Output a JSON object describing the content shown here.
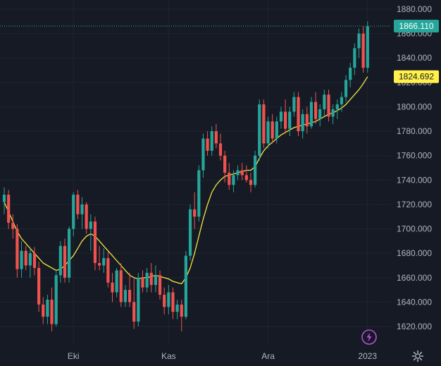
{
  "colors": {
    "background": "#161a25",
    "grid": "#1f2430",
    "up": "#26a69a",
    "down": "#ef5350",
    "ma": "#f4e542",
    "text": "#b2b5be",
    "last_price_bg": "#26a69a",
    "ma_tag_bg": "#fff04a",
    "badge": "#b84fd6"
  },
  "chart_data": {
    "type": "candlestick",
    "y_axis": {
      "min": 1608,
      "max": 1886,
      "ticks": [
        "1880.000",
        "1860.000",
        "1840.000",
        "1820.000",
        "1800.000",
        "1780.000",
        "1760.000",
        "1740.000",
        "1720.000",
        "1700.000",
        "1680.000",
        "1660.000",
        "1640.000",
        "1620.000"
      ],
      "tick_values": [
        1880,
        1860,
        1840,
        1820,
        1800,
        1780,
        1760,
        1740,
        1720,
        1700,
        1680,
        1660,
        1640,
        1620
      ]
    },
    "x_axis": {
      "labels": [
        {
          "text": "Eki",
          "index": 16
        },
        {
          "text": "Kas",
          "index": 38
        },
        {
          "text": "Ara",
          "index": 61
        },
        {
          "text": "2023",
          "index": 84
        }
      ]
    },
    "last_price": {
      "text": "1866.110",
      "value": 1866.11
    },
    "ma_last": {
      "text": "1824.692",
      "value": 1824.692
    },
    "series": [
      {
        "name": "price",
        "ohlc": [
          [
            1722,
            1734,
            1712,
            1728
          ],
          [
            1728,
            1732,
            1700,
            1705
          ],
          [
            1705,
            1712,
            1692,
            1700
          ],
          [
            1700,
            1704,
            1660,
            1667
          ],
          [
            1667,
            1690,
            1660,
            1682
          ],
          [
            1682,
            1686,
            1666,
            1670
          ],
          [
            1670,
            1684,
            1660,
            1680
          ],
          [
            1680,
            1685,
            1662,
            1668
          ],
          [
            1668,
            1673,
            1632,
            1638
          ],
          [
            1638,
            1644,
            1622,
            1628
          ],
          [
            1628,
            1646,
            1622,
            1642
          ],
          [
            1642,
            1652,
            1616,
            1622
          ],
          [
            1622,
            1666,
            1620,
            1662
          ],
          [
            1662,
            1690,
            1656,
            1686
          ],
          [
            1686,
            1692,
            1656,
            1660
          ],
          [
            1660,
            1702,
            1656,
            1700
          ],
          [
            1700,
            1730,
            1694,
            1728
          ],
          [
            1728,
            1732,
            1708,
            1712
          ],
          [
            1712,
            1726,
            1700,
            1720
          ],
          [
            1720,
            1722,
            1696,
            1700
          ],
          [
            1700,
            1712,
            1682,
            1706
          ],
          [
            1706,
            1710,
            1666,
            1672
          ],
          [
            1672,
            1686,
            1666,
            1670
          ],
          [
            1670,
            1684,
            1664,
            1676
          ],
          [
            1676,
            1682,
            1652,
            1656
          ],
          [
            1656,
            1664,
            1640,
            1648
          ],
          [
            1648,
            1668,
            1644,
            1666
          ],
          [
            1666,
            1672,
            1636,
            1640
          ],
          [
            1640,
            1654,
            1636,
            1650
          ],
          [
            1650,
            1664,
            1636,
            1640
          ],
          [
            1640,
            1660,
            1618,
            1624
          ],
          [
            1624,
            1664,
            1620,
            1660
          ],
          [
            1660,
            1666,
            1648,
            1652
          ],
          [
            1652,
            1668,
            1648,
            1664
          ],
          [
            1664,
            1672,
            1648,
            1654
          ],
          [
            1654,
            1670,
            1648,
            1662
          ],
          [
            1662,
            1666,
            1642,
            1646
          ],
          [
            1646,
            1652,
            1630,
            1636
          ],
          [
            1636,
            1654,
            1630,
            1648
          ],
          [
            1648,
            1652,
            1626,
            1632
          ],
          [
            1632,
            1642,
            1626,
            1638
          ],
          [
            1638,
            1642,
            1616,
            1628
          ],
          [
            1628,
            1682,
            1626,
            1678
          ],
          [
            1678,
            1720,
            1674,
            1716
          ],
          [
            1716,
            1730,
            1700,
            1710
          ],
          [
            1710,
            1752,
            1706,
            1748
          ],
          [
            1748,
            1778,
            1742,
            1774
          ],
          [
            1774,
            1780,
            1760,
            1764
          ],
          [
            1764,
            1784,
            1760,
            1780
          ],
          [
            1780,
            1786,
            1766,
            1770
          ],
          [
            1770,
            1778,
            1756,
            1760
          ],
          [
            1760,
            1764,
            1738,
            1746
          ],
          [
            1746,
            1754,
            1732,
            1736
          ],
          [
            1736,
            1748,
            1730,
            1744
          ],
          [
            1744,
            1752,
            1740,
            1748
          ],
          [
            1748,
            1754,
            1740,
            1744
          ],
          [
            1744,
            1752,
            1738,
            1740
          ],
          [
            1740,
            1746,
            1730,
            1736
          ],
          [
            1736,
            1764,
            1734,
            1760
          ],
          [
            1760,
            1806,
            1756,
            1802
          ],
          [
            1802,
            1806,
            1766,
            1770
          ],
          [
            1770,
            1792,
            1766,
            1788
          ],
          [
            1788,
            1794,
            1770,
            1774
          ],
          [
            1774,
            1792,
            1770,
            1788
          ],
          [
            1788,
            1800,
            1782,
            1796
          ],
          [
            1796,
            1806,
            1778,
            1782
          ],
          [
            1782,
            1800,
            1776,
            1796
          ],
          [
            1796,
            1812,
            1792,
            1808
          ],
          [
            1808,
            1812,
            1776,
            1780
          ],
          [
            1780,
            1798,
            1774,
            1794
          ],
          [
            1794,
            1800,
            1778,
            1784
          ],
          [
            1784,
            1808,
            1782,
            1804
          ],
          [
            1804,
            1812,
            1786,
            1790
          ],
          [
            1790,
            1802,
            1784,
            1798
          ],
          [
            1798,
            1814,
            1792,
            1810
          ],
          [
            1810,
            1814,
            1788,
            1792
          ],
          [
            1792,
            1802,
            1786,
            1798
          ],
          [
            1798,
            1806,
            1790,
            1802
          ],
          [
            1802,
            1812,
            1796,
            1808
          ],
          [
            1808,
            1826,
            1804,
            1822
          ],
          [
            1822,
            1836,
            1816,
            1832
          ],
          [
            1832,
            1852,
            1826,
            1848
          ],
          [
            1848,
            1864,
            1840,
            1860
          ],
          [
            1860,
            1866,
            1828,
            1832
          ],
          [
            1832,
            1870,
            1828,
            1866
          ]
        ]
      },
      {
        "name": "ma",
        "values": [
          1722,
          1714,
          1706,
          1698,
          1692,
          1688,
          1684,
          1680,
          1676,
          1672,
          1670,
          1668,
          1666,
          1667,
          1670,
          1674,
          1678,
          1684,
          1690,
          1694,
          1696,
          1694,
          1690,
          1686,
          1682,
          1678,
          1674,
          1670,
          1666,
          1662,
          1660,
          1659,
          1660,
          1660,
          1661,
          1662,
          1661,
          1660,
          1659,
          1657,
          1656,
          1655,
          1660,
          1668,
          1680,
          1694,
          1708,
          1720,
          1730,
          1736,
          1740,
          1743,
          1744,
          1745,
          1746,
          1747,
          1748,
          1748,
          1751,
          1758,
          1764,
          1768,
          1771,
          1774,
          1777,
          1779,
          1781,
          1783,
          1784,
          1785,
          1786,
          1787,
          1788,
          1790,
          1792,
          1794,
          1795,
          1797,
          1799,
          1802,
          1806,
          1810,
          1814,
          1819,
          1824.692
        ]
      }
    ]
  },
  "badge_icon": "lightning-icon",
  "settings_icon": "gear-icon"
}
